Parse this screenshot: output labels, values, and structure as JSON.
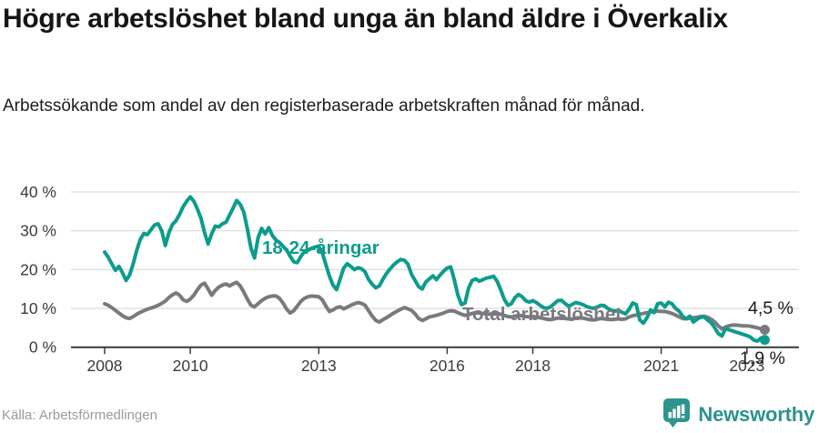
{
  "header": {
    "title": "Högre arbetslöshet bland unga än bland äldre i Överkalix",
    "subtitle": "Arbetssökande som andel av den registerbaserade arbetskraften månad för månad."
  },
  "chart_data": {
    "type": "line",
    "title": "Högre arbetslöshet bland unga än bland äldre i Överkalix",
    "frequency": "monthly",
    "x_start": "2008-01",
    "x_end": "2023-06",
    "x_tick_years": [
      2008,
      2010,
      2013,
      2016,
      2018,
      2021,
      2023
    ],
    "y_ticks": [
      0,
      10,
      20,
      30,
      40
    ],
    "y_tick_suffix": " %",
    "ylim": [
      0,
      40
    ],
    "grid": true,
    "legend_position": "inline-labels",
    "series": [
      {
        "slug": "youth",
        "name": "18-24-åringar",
        "color": "#0d9c8c",
        "end_label": "1,9 %",
        "values": [
          24.5,
          23.2,
          21.5,
          19.8,
          20.8,
          19.2,
          17.2,
          18.6,
          21.5,
          25.0,
          27.8,
          29.3,
          29.0,
          30.3,
          31.5,
          31.8,
          30.0,
          26.2,
          29.5,
          31.6,
          32.6,
          34.2,
          36.2,
          37.6,
          38.7,
          37.6,
          35.6,
          33.2,
          29.5,
          26.6,
          29.2,
          31.2,
          31.0,
          31.8,
          32.2,
          34.0,
          35.8,
          37.8,
          36.8,
          34.8,
          30.5,
          25.5,
          23.0,
          28.2,
          30.6,
          29.2,
          30.8,
          28.8,
          27.6,
          27.0,
          26.0,
          25.0,
          23.4,
          22.0,
          21.8,
          23.4,
          24.6,
          25.0,
          25.5,
          25.8,
          26.0,
          24.3,
          21.3,
          18.3,
          16.0,
          14.8,
          17.6,
          20.4,
          21.5,
          20.8,
          20.0,
          20.5,
          20.2,
          19.4,
          17.4,
          16.2,
          15.3,
          15.8,
          17.5,
          19.0,
          20.2,
          21.2,
          22.0,
          22.6,
          22.4,
          21.4,
          18.8,
          17.2,
          15.6,
          15.0,
          16.8,
          17.6,
          18.4,
          17.4,
          18.6,
          19.6,
          20.4,
          20.7,
          17.4,
          13.4,
          11.0,
          11.4,
          15.2,
          17.2,
          17.6,
          17.0,
          17.4,
          17.8,
          18.0,
          18.3,
          17.0,
          14.8,
          12.4,
          10.8,
          11.2,
          12.8,
          13.6,
          13.0,
          12.0,
          11.6,
          12.0,
          11.5,
          10.8,
          10.2,
          10.0,
          10.4,
          11.2,
          12.0,
          12.1,
          11.3,
          10.6,
          11.0,
          11.5,
          11.3,
          11.0,
          10.5,
          10.2,
          10.0,
          10.3,
          10.8,
          10.7,
          10.0,
          9.5,
          9.3,
          9.5,
          9.0,
          8.6,
          9.8,
          11.4,
          11.0,
          7.0,
          6.2,
          7.6,
          9.6,
          8.9,
          11.2,
          11.4,
          10.4,
          11.6,
          11.2,
          10.0,
          9.3,
          8.0,
          7.3,
          8.0,
          6.5,
          7.2,
          7.7,
          7.8,
          7.0,
          6.3,
          5.0,
          3.5,
          2.9,
          4.7,
          4.5,
          4.2,
          3.9,
          3.6,
          3.3,
          3.0,
          2.6,
          1.8,
          1.6,
          2.4,
          1.9
        ]
      },
      {
        "slug": "total",
        "name": "Total arbetslöshet",
        "color": "#7a7a7e",
        "end_label": "4,5 %",
        "values": [
          11.2,
          10.8,
          10.2,
          9.5,
          8.8,
          8.1,
          7.6,
          7.4,
          7.9,
          8.5,
          9.0,
          9.4,
          9.8,
          10.1,
          10.4,
          10.8,
          11.3,
          11.9,
          12.8,
          13.5,
          14.0,
          13.4,
          12.2,
          11.8,
          12.4,
          13.4,
          14.8,
          16.0,
          16.5,
          15.0,
          13.4,
          14.6,
          15.5,
          16.0,
          16.3,
          15.8,
          16.3,
          16.7,
          15.8,
          14.2,
          12.4,
          10.8,
          10.4,
          11.2,
          12.0,
          12.6,
          13.0,
          13.2,
          13.2,
          12.6,
          11.4,
          9.8,
          8.8,
          9.4,
          10.6,
          11.8,
          12.6,
          13.0,
          13.2,
          13.1,
          13.0,
          12.2,
          10.6,
          9.2,
          9.6,
          10.2,
          10.4,
          9.9,
          10.3,
          10.8,
          11.2,
          11.5,
          11.3,
          10.8,
          9.4,
          8.0,
          6.9,
          6.5,
          7.1,
          7.6,
          8.2,
          8.8,
          9.3,
          9.8,
          10.2,
          9.9,
          9.5,
          8.6,
          7.4,
          6.9,
          7.3,
          7.8,
          8.0,
          8.2,
          8.5,
          8.8,
          9.2,
          9.4,
          9.3,
          8.9,
          8.5,
          8.2,
          8.4,
          8.7,
          8.9,
          8.8,
          8.7,
          8.6,
          8.5,
          8.6,
          8.7,
          8.5,
          8.2,
          7.9,
          7.8,
          8.0,
          8.2,
          8.1,
          7.9,
          7.8,
          7.9,
          7.8,
          7.6,
          7.4,
          7.2,
          7.1,
          7.3,
          7.5,
          7.6,
          7.4,
          7.3,
          7.2,
          7.5,
          7.6,
          7.5,
          7.3,
          7.1,
          7.0,
          7.2,
          7.4,
          7.3,
          7.2,
          7.1,
          7.2,
          7.3,
          7.2,
          7.3,
          7.8,
          8.1,
          8.3,
          8.5,
          8.7,
          8.9,
          9.1,
          9.3,
          9.3,
          9.2,
          9.2,
          9.0,
          8.7,
          8.3,
          7.8,
          7.4,
          7.3,
          7.5,
          7.6,
          7.7,
          7.9,
          8.0,
          7.7,
          7.2,
          6.5,
          5.5,
          4.7,
          5.2,
          5.5,
          5.7,
          5.7,
          5.6,
          5.5,
          5.5,
          5.4,
          5.2,
          5.0,
          4.7,
          4.5
        ]
      }
    ]
  },
  "footer": {
    "source": "Källa: Arbetsförmedlingen",
    "brand": "Newsworthy"
  },
  "colors": {
    "youth_line": "#0d9c8c",
    "total_line": "#7a7a7e",
    "brand_teal": "#2b938c",
    "gridline": "#dcdcdc",
    "axis": "#3a3a3a"
  }
}
